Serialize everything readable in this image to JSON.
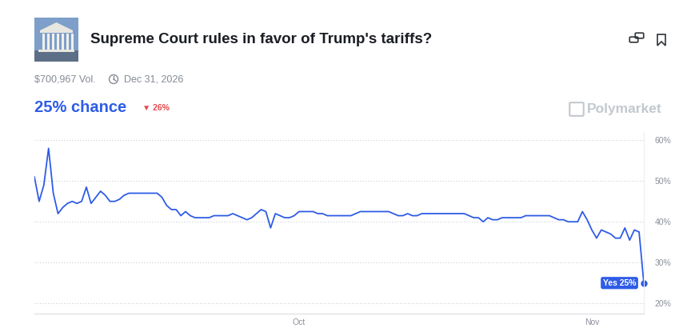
{
  "chart_data": {
    "type": "line",
    "title": "Supreme Court rules in favor of Trump's tariffs?",
    "subtitle": "$700,967 Vol.",
    "date": "Dec 31, 2026",
    "headline": "25% chance",
    "change": "▼ 26%",
    "watermark": "Polymarket",
    "end_label": "Yes 25%",
    "color": "#2e5ce6",
    "categories": [
      null,
      null,
      null,
      null,
      null,
      null,
      null,
      null,
      null,
      null,
      null,
      null,
      null,
      null,
      null,
      null,
      null,
      null,
      null,
      null,
      null,
      null,
      null,
      null,
      null,
      null,
      null,
      null,
      null,
      null,
      null,
      null,
      null,
      null,
      null,
      null,
      null,
      null,
      null,
      null,
      null,
      null,
      null,
      null,
      null,
      null,
      null,
      null,
      null,
      null,
      null,
      null,
      null,
      null,
      null,
      null,
      "Oct",
      null,
      null,
      null,
      null,
      null,
      null,
      null,
      null,
      null,
      null,
      null,
      null,
      null,
      null,
      null,
      null,
      null,
      null,
      null,
      null,
      null,
      null,
      null,
      null,
      null,
      null,
      null,
      null,
      null,
      null,
      null,
      null,
      null,
      null,
      null,
      null,
      null,
      null,
      null,
      null,
      null,
      null,
      null,
      null,
      null,
      null,
      null,
      null,
      null,
      null,
      null,
      null,
      null,
      null,
      null,
      null,
      null,
      null,
      null,
      null,
      null,
      "Nov",
      null,
      null,
      null,
      null,
      null,
      null,
      null,
      null,
      null,
      null,
      null
    ],
    "values": [
      51,
      45,
      49,
      58,
      47,
      42,
      43.5,
      44.5,
      45,
      44.5,
      45,
      48.5,
      44.5,
      46,
      47.5,
      46.5,
      45,
      45,
      45.5,
      46.5,
      47,
      47,
      47,
      47,
      47,
      47,
      47,
      46,
      44,
      43,
      43,
      41.5,
      42.5,
      41.5,
      41,
      41,
      41,
      41,
      41.5,
      41.5,
      41.5,
      41.5,
      42,
      41.5,
      41,
      40.5,
      41,
      42,
      43,
      42.5,
      38.5,
      42,
      41.5,
      41,
      41,
      41.5,
      42.5,
      42.5,
      42.5,
      42.5,
      42,
      42,
      41.5,
      41.5,
      41.5,
      41.5,
      41.5,
      41.5,
      42,
      42.5,
      42.5,
      42.5,
      42.5,
      42.5,
      42.5,
      42.5,
      42,
      41.5,
      41.5,
      42,
      41.5,
      41.5,
      42,
      42,
      42,
      42,
      42,
      42,
      42,
      42,
      42,
      42,
      41.5,
      41,
      41,
      40,
      41,
      40.5,
      40.5,
      41,
      41,
      41,
      41,
      41,
      41.5,
      41.5,
      41.5,
      41.5,
      41.5,
      41.5,
      41,
      40.5,
      40.5,
      40,
      40,
      40,
      42.5,
      40.5,
      38,
      36,
      38,
      37.5,
      37,
      36,
      36,
      38.5,
      35.5,
      38,
      37.5,
      25
    ],
    "ylim": [
      17.5,
      62
    ],
    "yticks": [
      {
        "value": 20,
        "label": "20%"
      },
      {
        "value": 30,
        "label": "30%"
      },
      {
        "value": 40,
        "label": "40%"
      },
      {
        "value": 50,
        "label": "50%"
      },
      {
        "value": 60,
        "label": "60%"
      }
    ],
    "grid": true
  }
}
